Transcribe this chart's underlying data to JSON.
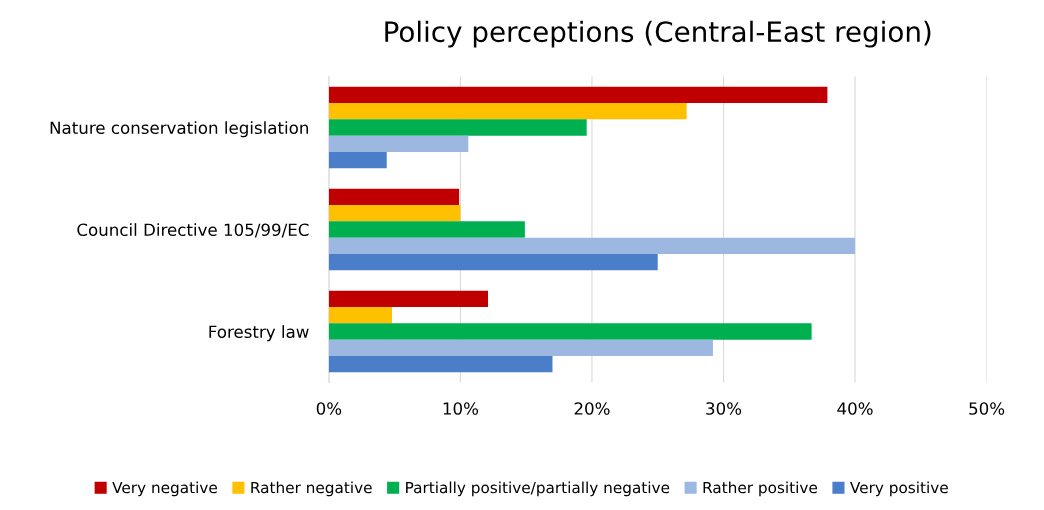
{
  "chart_data": {
    "type": "bar",
    "orientation": "horizontal",
    "title": "Policy perceptions (Central-East region)",
    "categories": [
      "Nature conservation legislation",
      "Council Directive 105/99/EC",
      "Forestry law"
    ],
    "series": [
      {
        "name": "Very negative",
        "color": "#c00000",
        "values": [
          37.9,
          9.9,
          12.1
        ]
      },
      {
        "name": "Rather negative",
        "color": "#ffc000",
        "values": [
          27.2,
          10,
          4.8
        ]
      },
      {
        "name": "Partially positive/partially negative",
        "color": "#00b050",
        "values": [
          19.6,
          14.9,
          36.7
        ]
      },
      {
        "name": "Rather positive",
        "color": "#9db8e0",
        "values": [
          10.6,
          40,
          29.2
        ]
      },
      {
        "name": "Very positive",
        "color": "#4a7ec8",
        "values": [
          4.4,
          25,
          17
        ]
      }
    ],
    "xlim": [
      0,
      50
    ],
    "xticks": [
      {
        "value": 0,
        "label": "0%"
      },
      {
        "value": 10,
        "label": "10%"
      },
      {
        "value": 20,
        "label": "20%"
      },
      {
        "value": 30,
        "label": "30%"
      },
      {
        "value": 40,
        "label": "40%"
      },
      {
        "value": 50,
        "label": "50%"
      }
    ],
    "grid": "x",
    "legend": "bottom"
  }
}
